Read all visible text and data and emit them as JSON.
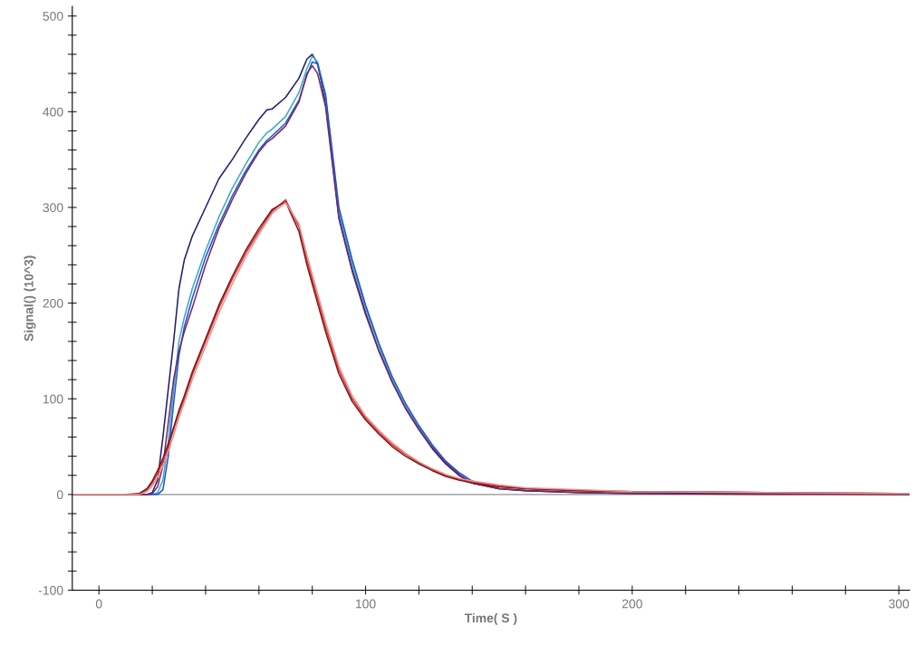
{
  "chart_data": {
    "type": "line",
    "xlabel": "Time( S )",
    "ylabel": "Signal() (10^3)",
    "x": [
      -10,
      0,
      10,
      15,
      18,
      20,
      22,
      24,
      26,
      28,
      30,
      32,
      35,
      40,
      45,
      50,
      55,
      60,
      63,
      65,
      70,
      75,
      78,
      80,
      82,
      85,
      90,
      95,
      100,
      105,
      110,
      115,
      120,
      125,
      130,
      135,
      140,
      150,
      160,
      180,
      200,
      250,
      300,
      304
    ],
    "series": [
      {
        "color": "#1c1c70",
        "values": [
          null,
          null,
          0,
          0,
          0,
          2,
          15,
          60,
          110,
          160,
          215,
          245,
          270,
          300,
          330,
          350,
          372,
          392,
          402,
          403,
          415,
          435,
          455,
          460,
          450,
          410,
          290,
          235,
          190,
          150,
          118,
          90,
          68,
          48,
          32,
          20,
          12,
          6,
          4,
          2,
          1,
          1,
          0,
          0
        ]
      },
      {
        "color": "#3aa8c8",
        "values": [
          null,
          null,
          null,
          0,
          0,
          0,
          2,
          15,
          55,
          110,
          160,
          185,
          215,
          255,
          290,
          320,
          345,
          368,
          378,
          382,
          395,
          420,
          445,
          458,
          452,
          415,
          295,
          240,
          195,
          155,
          120,
          92,
          70,
          50,
          34,
          22,
          null,
          null,
          null,
          null,
          null,
          null,
          null,
          null
        ]
      },
      {
        "color": "#2050d8",
        "values": [
          null,
          null,
          null,
          0,
          0,
          0,
          0,
          5,
          40,
          95,
          145,
          175,
          205,
          248,
          282,
          312,
          338,
          360,
          370,
          375,
          388,
          412,
          438,
          452,
          450,
          418,
          300,
          245,
          198,
          158,
          123,
          95,
          72,
          52,
          35,
          23,
          14,
          6,
          null,
          null,
          null,
          null,
          null,
          null
        ]
      },
      {
        "color": "#702860",
        "values": [
          0,
          0,
          0,
          0,
          0,
          1,
          8,
          30,
          75,
          120,
          150,
          170,
          195,
          240,
          278,
          308,
          335,
          358,
          368,
          372,
          385,
          410,
          440,
          448,
          440,
          405,
          288,
          233,
          188,
          150,
          117,
          90,
          68,
          49,
          33,
          21,
          12,
          6,
          4,
          2,
          1,
          0,
          0,
          0
        ]
      },
      {
        "color": "#d83030",
        "values": [
          0,
          0,
          0,
          0,
          5,
          12,
          22,
          35,
          50,
          68,
          85,
          100,
          125,
          160,
          195,
          225,
          252,
          275,
          288,
          296,
          308,
          280,
          245,
          225,
          205,
          175,
          130,
          100,
          80,
          65,
          52,
          42,
          33,
          26,
          20,
          16,
          13,
          9,
          6,
          4,
          3,
          2,
          1,
          1
        ]
      },
      {
        "color": "#801818",
        "values": [
          0,
          0,
          0,
          1,
          6,
          14,
          25,
          38,
          53,
          70,
          88,
          103,
          128,
          163,
          198,
          228,
          255,
          278,
          290,
          298,
          306,
          275,
          240,
          220,
          200,
          170,
          126,
          97,
          78,
          63,
          50,
          40,
          32,
          25,
          19,
          15,
          12,
          8,
          6,
          4,
          3,
          2,
          1,
          1
        ]
      },
      {
        "color": "#e89090",
        "values": [
          0,
          0,
          0,
          0,
          3,
          9,
          18,
          30,
          45,
          62,
          80,
          96,
          120,
          155,
          190,
          220,
          248,
          272,
          285,
          294,
          305,
          283,
          250,
          230,
          210,
          180,
          134,
          103,
          82,
          67,
          54,
          43,
          34,
          27,
          21,
          17,
          14,
          10,
          7,
          5,
          3,
          2,
          1,
          1
        ]
      }
    ],
    "xlim": [
      -10,
      304
    ],
    "xticks": [
      0,
      {
        "value": 20,
        "label": null
      },
      {
        "value": 40,
        "label": null
      },
      {
        "value": 60,
        "label": null
      },
      {
        "value": 80,
        "label": null
      },
      100,
      {
        "value": 120,
        "label": null
      },
      {
        "value": 140,
        "label": null
      },
      {
        "value": 160,
        "label": null
      },
      {
        "value": 180,
        "label": null
      },
      200,
      {
        "value": 220,
        "label": null
      },
      {
        "value": 240,
        "label": null
      },
      {
        "value": 260,
        "label": null
      },
      {
        "value": 280,
        "label": null
      },
      300
    ],
    "ylim": [
      -100,
      510
    ],
    "yticks": [
      -100,
      {
        "value": -80,
        "label": null
      },
      {
        "value": -60,
        "label": null
      },
      {
        "value": -40,
        "label": null
      },
      {
        "value": -20,
        "label": null
      },
      0,
      {
        "value": 20,
        "label": null
      },
      {
        "value": 40,
        "label": null
      },
      {
        "value": 60,
        "label": null
      },
      {
        "value": 80,
        "label": null
      },
      100,
      {
        "value": 120,
        "label": null
      },
      {
        "value": 140,
        "label": null
      },
      {
        "value": 160,
        "label": null
      },
      {
        "value": 180,
        "label": null
      },
      200,
      {
        "value": 220,
        "label": null
      },
      {
        "value": 240,
        "label": null
      },
      {
        "value": 260,
        "label": null
      },
      {
        "value": 280,
        "label": null
      },
      300,
      {
        "value": 320,
        "label": null
      },
      {
        "value": 340,
        "label": null
      },
      {
        "value": 360,
        "label": null
      },
      {
        "value": 380,
        "label": null
      },
      400,
      {
        "value": 420,
        "label": null
      },
      {
        "value": 440,
        "label": null
      },
      {
        "value": 460,
        "label": null
      },
      {
        "value": 480,
        "label": null
      },
      500
    ],
    "ref_lines": [
      {
        "axis": "y",
        "value": 0,
        "color": "#909090"
      }
    ],
    "grid": false,
    "legend": false
  }
}
